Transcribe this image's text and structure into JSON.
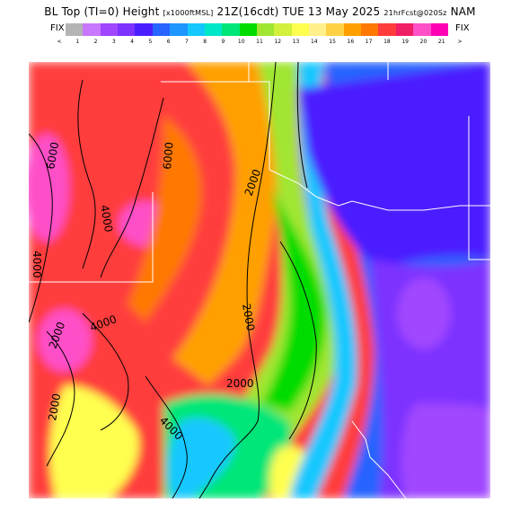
{
  "header": {
    "title_main": "BL Top (TI=0) Height",
    "title_units": "[x1000ftMSL]",
    "title_valid": "21Z(16cdt) TUE 13 May 2025",
    "title_fcst": "21hrFcst@020Sz",
    "title_model": "NAM",
    "fix_left": "FIX",
    "fix_right": "FIX"
  },
  "legend": {
    "ticks": [
      "<",
      "1",
      "2",
      "3",
      "4",
      "5",
      "6",
      "7",
      "8",
      "9",
      "10",
      "11",
      "12",
      "13",
      "14",
      "15",
      "16",
      "17",
      "18",
      "19",
      "20",
      "21",
      ">"
    ],
    "colors": [
      "#b4b4b4",
      "#c878ff",
      "#a046ff",
      "#7d32ff",
      "#4b1eff",
      "#2864ff",
      "#1e96ff",
      "#14c8ff",
      "#00e6c8",
      "#00e678",
      "#00dc00",
      "#a0e632",
      "#d2f03c",
      "#ffff50",
      "#fff08c",
      "#ffd246",
      "#ffa000",
      "#ff7800",
      "#ff3c3c",
      "#f01e64",
      "#ff50c8",
      "#ff00b4"
    ]
  },
  "map": {
    "contour_labels": [
      "6000",
      "4000",
      "6000",
      "4000",
      "2000",
      "2000",
      "2000",
      "4000",
      "2000",
      "4000",
      "2000"
    ]
  }
}
